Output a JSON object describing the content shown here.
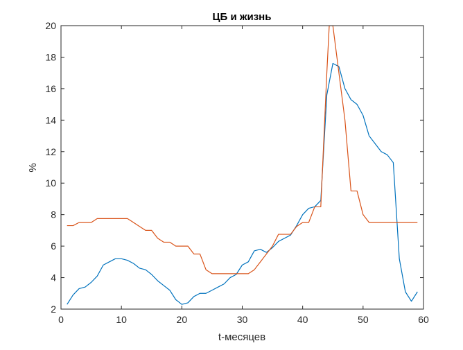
{
  "chart_data": {
    "type": "line",
    "title": "ЦБ и жизнь",
    "xlabel": "t-месяцев",
    "ylabel": "%",
    "xlim": [
      0,
      60
    ],
    "ylim": [
      2,
      20
    ],
    "xticks": [
      0,
      10,
      20,
      30,
      40,
      50,
      60
    ],
    "yticks": [
      2,
      4,
      6,
      8,
      10,
      12,
      14,
      16,
      18,
      20
    ],
    "grid": false,
    "legend": "none",
    "series": [
      {
        "color": "#0072BD",
        "x": [
          1,
          2,
          3,
          4,
          5,
          6,
          7,
          8,
          9,
          10,
          11,
          12,
          13,
          14,
          15,
          16,
          17,
          18,
          19,
          20,
          21,
          22,
          23,
          24,
          25,
          26,
          27,
          28,
          29,
          30,
          31,
          32,
          33,
          34,
          35,
          36,
          37,
          38,
          39,
          40,
          41,
          42,
          43,
          44,
          45,
          46,
          47,
          48,
          49,
          50,
          51,
          52,
          53,
          54,
          55,
          56,
          57,
          58,
          59
        ],
        "values": [
          2.3,
          2.9,
          3.3,
          3.4,
          3.7,
          4.1,
          4.8,
          5.0,
          5.2,
          5.2,
          5.1,
          4.9,
          4.6,
          4.5,
          4.2,
          3.8,
          3.5,
          3.2,
          2.6,
          2.3,
          2.4,
          2.8,
          3.0,
          3.0,
          3.2,
          3.4,
          3.6,
          4.0,
          4.2,
          4.8,
          5.0,
          5.7,
          5.8,
          5.6,
          5.9,
          6.3,
          6.5,
          6.7,
          7.3,
          8.0,
          8.4,
          8.5,
          8.9,
          15.6,
          17.6,
          17.4,
          16.0,
          15.3,
          15.0,
          14.3,
          13.0,
          12.5,
          12.0,
          11.8,
          11.3,
          5.2,
          3.1,
          2.5,
          3.1
        ]
      },
      {
        "color": "#D95319",
        "x": [
          1,
          2,
          3,
          4,
          5,
          6,
          7,
          8,
          9,
          10,
          11,
          12,
          13,
          14,
          15,
          16,
          17,
          18,
          19,
          20,
          21,
          22,
          23,
          24,
          25,
          26,
          27,
          28,
          29,
          30,
          31,
          32,
          33,
          34,
          35,
          36,
          37,
          38,
          39,
          40,
          41,
          42,
          43,
          44,
          44.4,
          45,
          46,
          47,
          48,
          49,
          50,
          51,
          52,
          53,
          54,
          55,
          56,
          57,
          58,
          59
        ],
        "values": [
          7.3,
          7.3,
          7.5,
          7.5,
          7.5,
          7.75,
          7.75,
          7.75,
          7.75,
          7.75,
          7.75,
          7.5,
          7.25,
          7.0,
          7.0,
          6.5,
          6.25,
          6.25,
          6.0,
          6.0,
          6.0,
          5.5,
          5.5,
          4.5,
          4.25,
          4.25,
          4.25,
          4.25,
          4.25,
          4.25,
          4.25,
          4.5,
          5.0,
          5.5,
          6.0,
          6.75,
          6.75,
          6.75,
          7.25,
          7.5,
          7.5,
          8.5,
          8.5,
          17.0,
          20.0,
          20.0,
          17.0,
          14.0,
          9.5,
          9.5,
          8.0,
          7.5,
          7.5,
          7.5,
          7.5,
          7.5,
          7.5,
          7.5,
          7.5,
          7.5
        ]
      }
    ]
  }
}
